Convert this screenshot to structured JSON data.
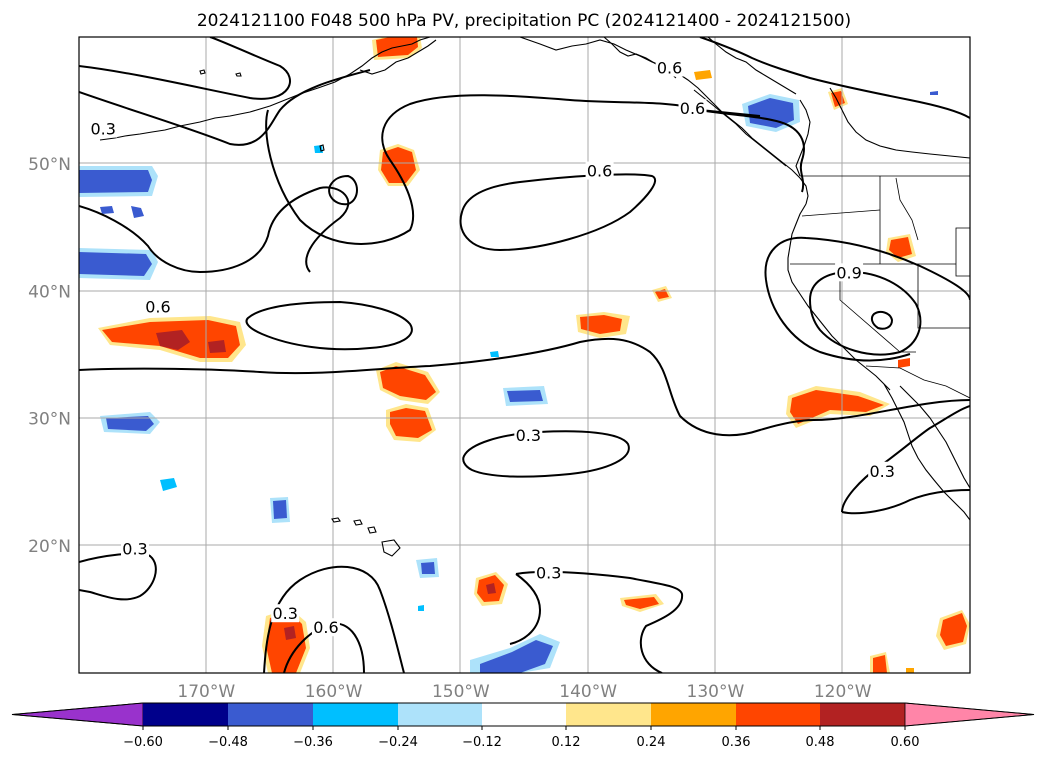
{
  "title": "2024121100 F048 500 hPa PV, precipitation PC (2024121400 - 2024121500)",
  "map": {
    "lon_range": [
      -180,
      -110
    ],
    "lat_range": [
      10,
      60
    ],
    "lat_ticks": [
      {
        "value": 20,
        "label": "20°N"
      },
      {
        "value": 30,
        "label": "30°N"
      },
      {
        "value": 40,
        "label": "40°N"
      },
      {
        "value": 50,
        "label": "50°N"
      }
    ],
    "lon_ticks": [
      {
        "value": -170,
        "label": "170°W"
      },
      {
        "value": -160,
        "label": "160°W"
      },
      {
        "value": -150,
        "label": "150°W"
      },
      {
        "value": -140,
        "label": "140°W"
      },
      {
        "value": -130,
        "label": "130°W"
      },
      {
        "value": -120,
        "label": "120°W"
      }
    ],
    "contour_labels": [
      {
        "text": "0.3",
        "lon": -178.1,
        "lat": 52.8
      },
      {
        "text": "0.6",
        "lon": -139.1,
        "lat": 49.5
      },
      {
        "text": "0.6",
        "lon": -173.8,
        "lat": 38.8
      },
      {
        "text": "0.3",
        "lon": -144.7,
        "lat": 28.7
      },
      {
        "text": "0.3",
        "lon": -175.6,
        "lat": 19.8
      },
      {
        "text": "0.3",
        "lon": -143.1,
        "lat": 17.9
      },
      {
        "text": "0.3",
        "lon": -163.8,
        "lat": 14.7
      },
      {
        "text": "0.6",
        "lon": -160.6,
        "lat": 13.6
      },
      {
        "text": "0.6",
        "lon": -133.6,
        "lat": 57.6
      },
      {
        "text": "0.6",
        "lon": -131.8,
        "lat": 54.4
      },
      {
        "text": "0.9",
        "lon": -119.5,
        "lat": 41.5
      },
      {
        "text": "0.3",
        "lon": -116.9,
        "lat": 25.9
      }
    ]
  },
  "colorbar": {
    "tick_labels": [
      "−0.60",
      "−0.48",
      "−0.36",
      "−0.24",
      "−0.12",
      "0.12",
      "0.24",
      "0.36",
      "0.48",
      "0.60"
    ],
    "colors": [
      "#9932CC",
      "#00008B",
      "#3A5BD0",
      "#00BFFF",
      "#ADE2FA",
      "#FFFFFF",
      "#FFE68C",
      "#FFA500",
      "#FF4500",
      "#B22222",
      "#FF85A8"
    ]
  }
}
